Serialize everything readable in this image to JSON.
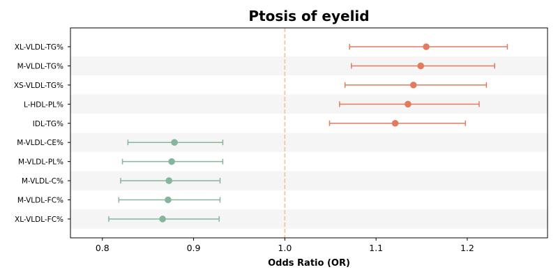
{
  "chart_data": {
    "type": "forest",
    "title": "Ptosis of eyelid",
    "xlabel": "Odds Ratio (OR)",
    "ylabel": "",
    "xlim": [
      0.765,
      1.288
    ],
    "x_ticks": [
      0.8,
      0.9,
      1.0,
      1.1,
      1.2
    ],
    "x_tick_labels": [
      "0.8",
      "0.9",
      "1.0",
      "1.1",
      "1.2"
    ],
    "reference_line": 1.0,
    "grid": false,
    "colors": {
      "positive": "#e07b5e",
      "negative": "#86b59c",
      "reference": "#f5c38f",
      "band": "#f5f5f5"
    },
    "rows": [
      {
        "label": "XL-VLDL-TG%",
        "or": 1.155,
        "lower": 1.071,
        "upper": 1.244
      },
      {
        "label": "M-VLDL-TG%",
        "or": 1.149,
        "lower": 1.073,
        "upper": 1.23
      },
      {
        "label": "XS-VLDL-TG%",
        "or": 1.141,
        "lower": 1.066,
        "upper": 1.221
      },
      {
        "label": "L-HDL-PL%",
        "or": 1.135,
        "lower": 1.06,
        "upper": 1.213
      },
      {
        "label": "IDL-TG%",
        "or": 1.121,
        "lower": 1.049,
        "upper": 1.198
      },
      {
        "label": "M-VLDL-CE%",
        "or": 0.879,
        "lower": 0.828,
        "upper": 0.932
      },
      {
        "label": "M-VLDL-PL%",
        "or": 0.876,
        "lower": 0.822,
        "upper": 0.932
      },
      {
        "label": "M-VLDL-C%",
        "or": 0.873,
        "lower": 0.82,
        "upper": 0.929
      },
      {
        "label": "M-VLDL-FC%",
        "or": 0.872,
        "lower": 0.818,
        "upper": 0.929
      },
      {
        "label": "XL-VLDL-FC%",
        "or": 0.866,
        "lower": 0.807,
        "upper": 0.928
      }
    ]
  }
}
